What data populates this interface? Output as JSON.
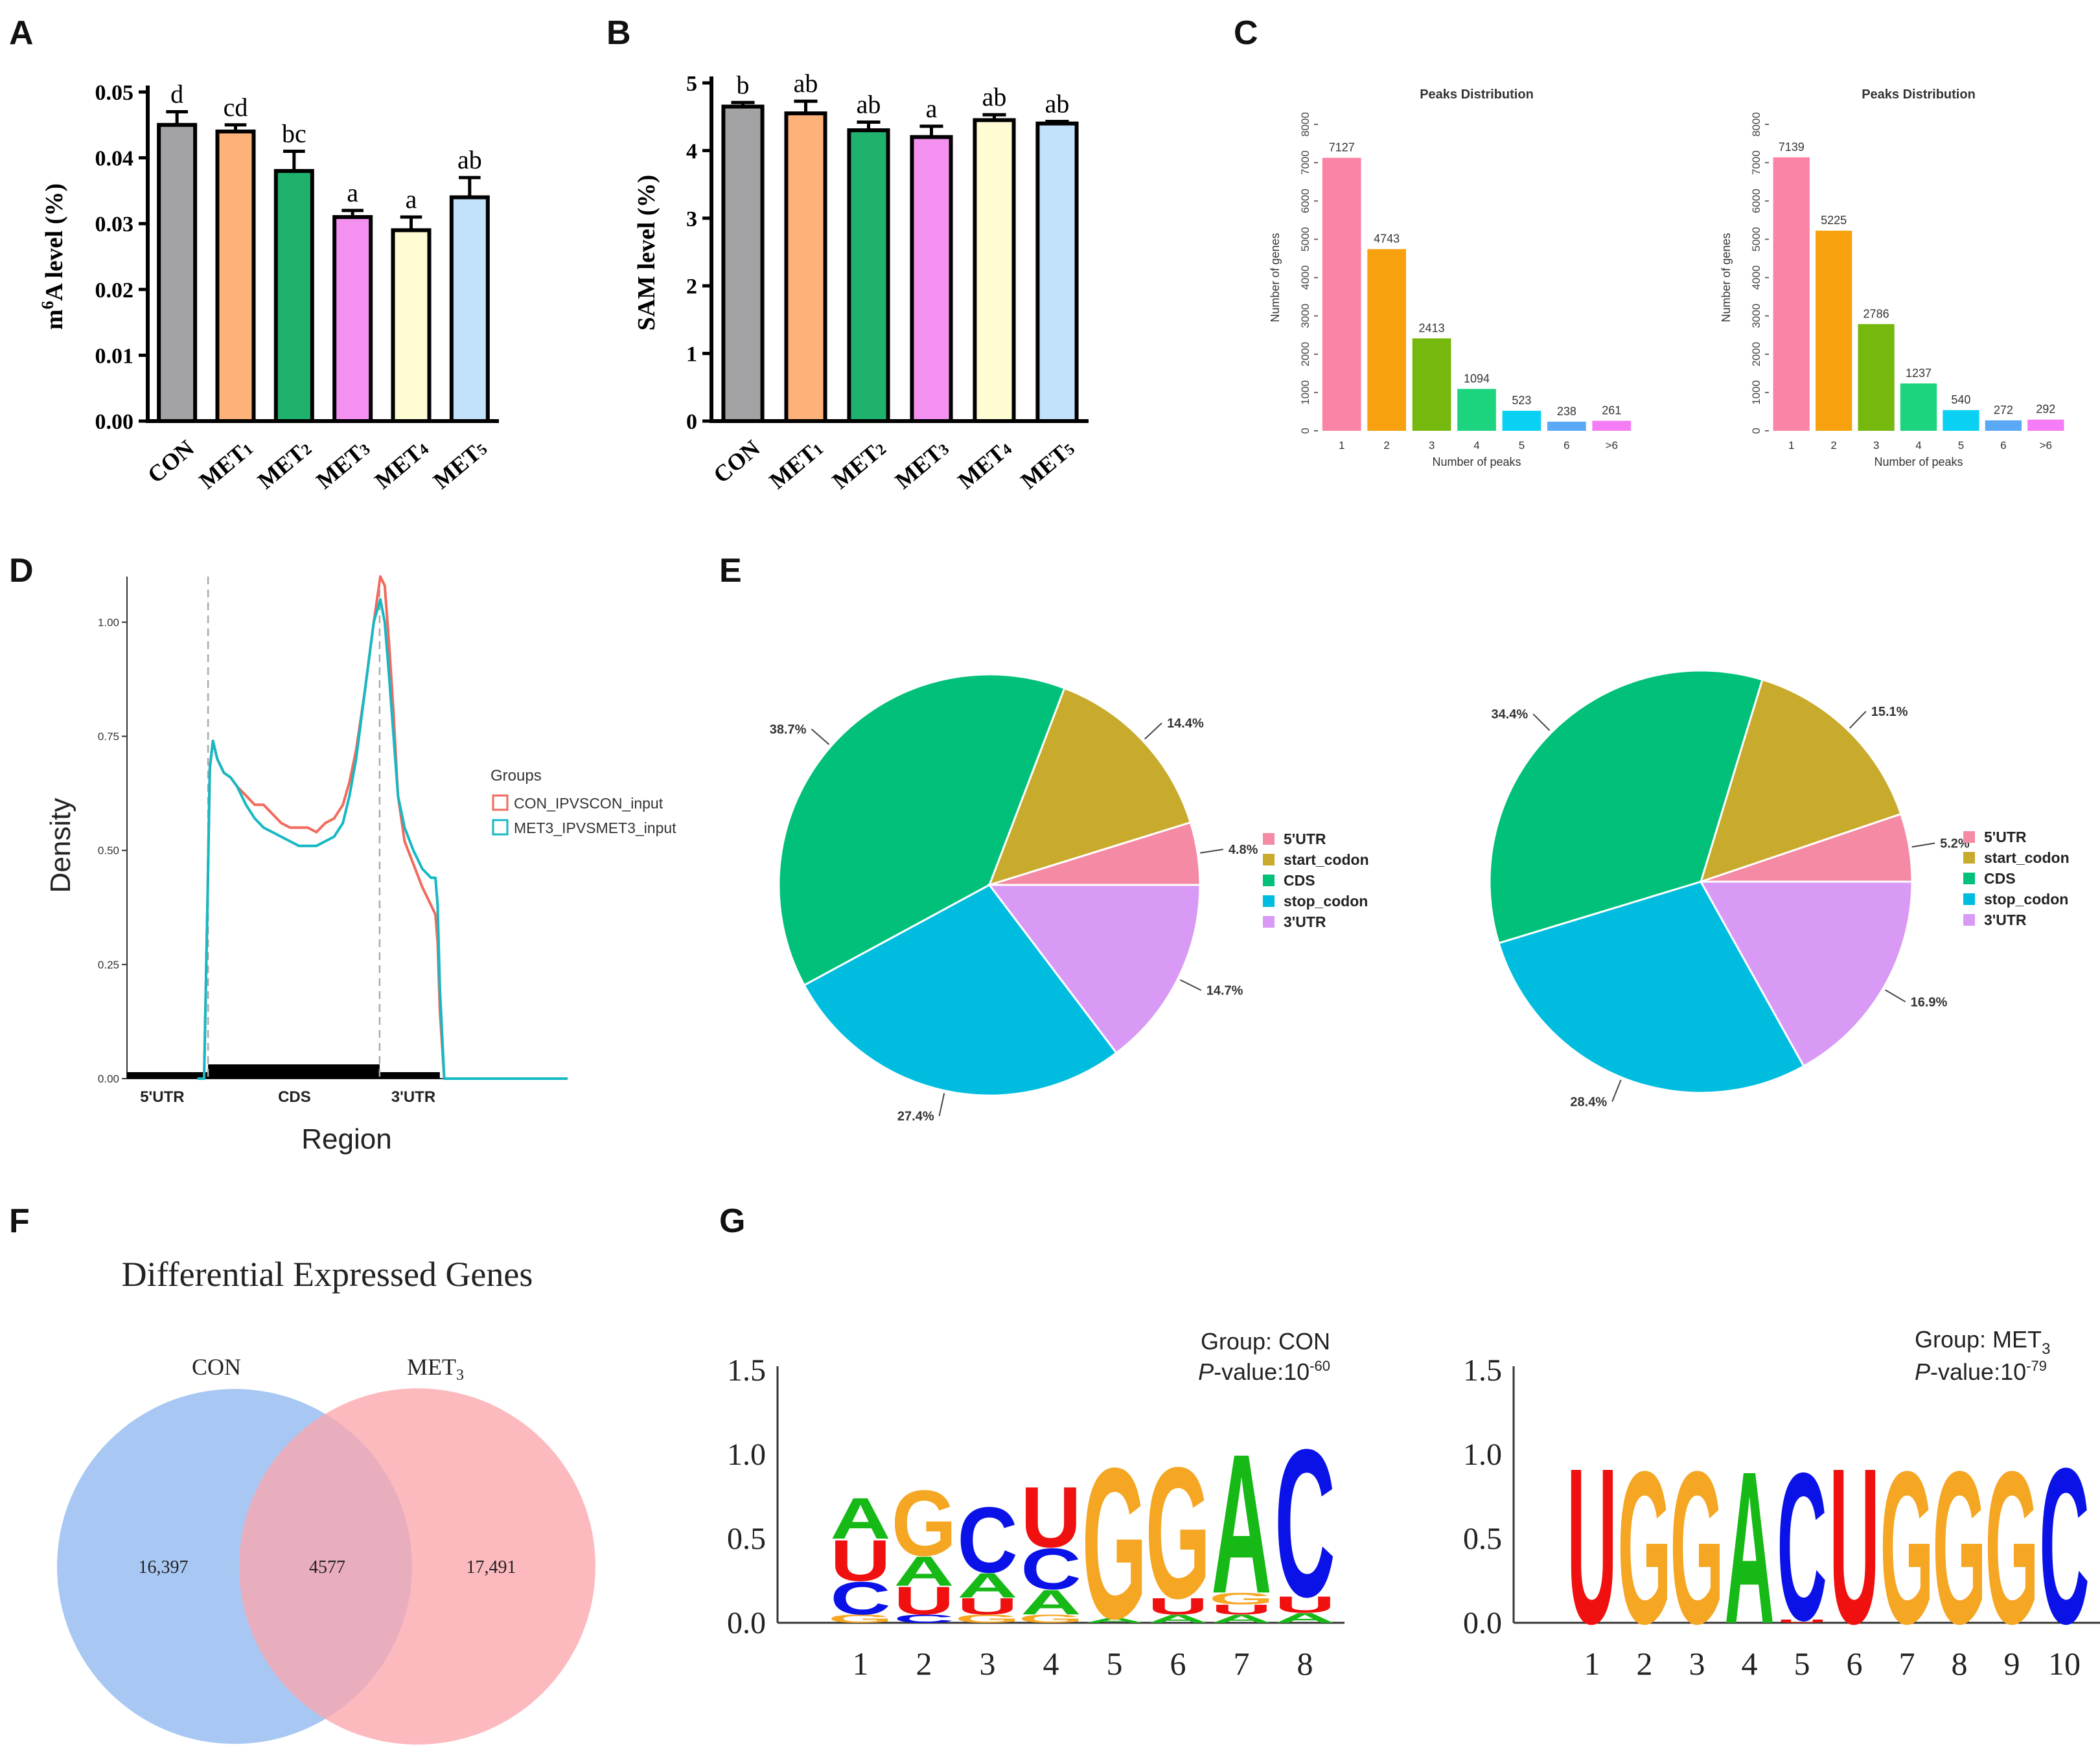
{
  "panels": {
    "a": "A",
    "b": "B",
    "c": "C",
    "d": "D",
    "e": "E",
    "f": "F",
    "g": "G"
  },
  "chart_data": [
    {
      "id": "A",
      "type": "bar",
      "ylabel_prefix": "m",
      "ylabel_sup": "6",
      "ylabel_rest": "A level (%)",
      "categories": [
        {
          "base": "CON",
          "sub": ""
        },
        {
          "base": "MET",
          "sub": "1"
        },
        {
          "base": "MET",
          "sub": "2"
        },
        {
          "base": "MET",
          "sub": "3"
        },
        {
          "base": "MET",
          "sub": "4"
        },
        {
          "base": "MET",
          "sub": "5"
        }
      ],
      "values": [
        0.045,
        0.044,
        0.038,
        0.031,
        0.029,
        0.034
      ],
      "errors": [
        0.002,
        0.001,
        0.003,
        0.001,
        0.002,
        0.003
      ],
      "letters": [
        "d",
        "cd",
        "bc",
        "a",
        "a",
        "ab"
      ],
      "colors": [
        "#a3a3a6",
        "#fdb27a",
        "#1fb26f",
        "#f490f0",
        "#fffbd2",
        "#c2e1fb"
      ],
      "ylim": [
        0,
        0.05
      ],
      "yticks": [
        "0.00",
        "0.01",
        "0.02",
        "0.03",
        "0.04",
        "0.05"
      ]
    },
    {
      "id": "B",
      "type": "bar",
      "ylabel": "SAM level (%)",
      "categories": [
        {
          "base": "CON",
          "sub": ""
        },
        {
          "base": "MET",
          "sub": "1"
        },
        {
          "base": "MET",
          "sub": "2"
        },
        {
          "base": "MET",
          "sub": "3"
        },
        {
          "base": "MET",
          "sub": "4"
        },
        {
          "base": "MET",
          "sub": "5"
        }
      ],
      "values": [
        4.65,
        4.55,
        4.3,
        4.2,
        4.45,
        4.4
      ],
      "errors": [
        0.06,
        0.18,
        0.12,
        0.16,
        0.08,
        0.03
      ],
      "letters": [
        "b",
        "ab",
        "ab",
        "a",
        "ab",
        "ab"
      ],
      "colors": [
        "#a3a3a6",
        "#fdb27a",
        "#1fb26f",
        "#f490f0",
        "#fffbd2",
        "#c2e1fb"
      ],
      "ylim": [
        0,
        5
      ],
      "yticks": [
        "0",
        "1",
        "2",
        "3",
        "4",
        "5"
      ]
    },
    {
      "id": "C1",
      "type": "bar",
      "title": "Peaks Distribution",
      "xlabel": "Number of peaks",
      "ylabel": "Number of genes",
      "categories": [
        "1",
        "2",
        "3",
        "4",
        "5",
        "6",
        ">6"
      ],
      "values": [
        7127,
        4743,
        2413,
        1094,
        523,
        238,
        261
      ],
      "colors": [
        "#fb83a5",
        "#f6a10d",
        "#77b80f",
        "#1cd47e",
        "#0ad0f4",
        "#5aa9f6",
        "#f47cf5"
      ],
      "ylim": [
        0,
        8000
      ],
      "yticks": [
        "0",
        "1000",
        "2000",
        "3000",
        "4000",
        "5000",
        "6000",
        "7000",
        "8000"
      ]
    },
    {
      "id": "C2",
      "type": "bar",
      "title": "Peaks Distribution",
      "xlabel": "Number of peaks",
      "ylabel": "Number of genes",
      "categories": [
        "1",
        "2",
        "3",
        "4",
        "5",
        "6",
        ">6"
      ],
      "values": [
        7139,
        5225,
        2786,
        1237,
        540,
        272,
        292
      ],
      "colors": [
        "#fb83a5",
        "#f6a10d",
        "#77b80f",
        "#1cd47e",
        "#0ad0f4",
        "#5aa9f6",
        "#f47cf5"
      ],
      "ylim": [
        0,
        8000
      ],
      "yticks": [
        "0",
        "1000",
        "2000",
        "3000",
        "4000",
        "5000",
        "6000",
        "7000",
        "8000"
      ]
    },
    {
      "id": "D",
      "type": "line",
      "xlabel": "Region",
      "ylabel": "Density",
      "ylim": [
        0,
        1.1
      ],
      "yticks": [
        "0.00",
        "0.25",
        "0.50",
        "0.75",
        "1.00"
      ],
      "regions": [
        "5'UTR",
        "CDS",
        "3'UTR"
      ],
      "legend_title": "Groups",
      "series": [
        {
          "name": "CON_IPVSCON_input",
          "color": "#f26a5e",
          "x": [
            0.16,
            0.175,
            0.183,
            0.188,
            0.195,
            0.205,
            0.22,
            0.235,
            0.25,
            0.27,
            0.29,
            0.31,
            0.33,
            0.35,
            0.37,
            0.39,
            0.41,
            0.43,
            0.45,
            0.47,
            0.49,
            0.505,
            0.52,
            0.54,
            0.56,
            0.575,
            0.585,
            0.595,
            0.605,
            0.615,
            0.63,
            0.65,
            0.67,
            0.69,
            0.7,
            0.705,
            0.71,
            0.72,
            0.73
          ],
          "y": [
            0,
            0,
            0.4,
            0.68,
            0.74,
            0.7,
            0.67,
            0.66,
            0.64,
            0.62,
            0.6,
            0.6,
            0.58,
            0.56,
            0.55,
            0.55,
            0.55,
            0.54,
            0.56,
            0.57,
            0.6,
            0.65,
            0.72,
            0.85,
            1.0,
            1.1,
            1.08,
            0.95,
            0.8,
            0.62,
            0.52,
            0.47,
            0.42,
            0.38,
            0.36,
            0.3,
            0.15,
            0,
            0
          ]
        },
        {
          "name": "MET3_IPVSMET3_input",
          "color": "#16b8c4",
          "x": [
            0.16,
            0.175,
            0.183,
            0.188,
            0.195,
            0.205,
            0.22,
            0.235,
            0.25,
            0.27,
            0.29,
            0.31,
            0.33,
            0.35,
            0.37,
            0.39,
            0.41,
            0.43,
            0.45,
            0.47,
            0.49,
            0.505,
            0.52,
            0.54,
            0.56,
            0.575,
            0.585,
            0.595,
            0.605,
            0.615,
            0.63,
            0.65,
            0.67,
            0.69,
            0.7,
            0.705,
            0.71,
            0.72,
            0.73
          ],
          "y": [
            0,
            0,
            0.4,
            0.68,
            0.74,
            0.7,
            0.67,
            0.66,
            0.64,
            0.6,
            0.57,
            0.55,
            0.54,
            0.53,
            0.52,
            0.51,
            0.51,
            0.51,
            0.52,
            0.53,
            0.56,
            0.62,
            0.7,
            0.85,
            1.0,
            1.05,
            1.0,
            0.88,
            0.75,
            0.62,
            0.55,
            0.5,
            0.46,
            0.44,
            0.44,
            0.38,
            0.2,
            0,
            0
          ]
        }
      ]
    },
    {
      "id": "E1",
      "type": "pie",
      "labels": [
        "5'UTR",
        "start_codon",
        "CDS",
        "stop_codon",
        "3'UTR"
      ],
      "values": [
        4.8,
        14.4,
        38.7,
        27.4,
        14.7
      ],
      "value_labels": [
        "4.8%",
        "14.4%",
        "38.7%",
        "27.4%",
        "14.7%"
      ],
      "colors": [
        "#f58aa5",
        "#c8aa2c",
        "#00c07a",
        "#00bde0",
        "#d99af5"
      ]
    },
    {
      "id": "E2",
      "type": "pie",
      "labels": [
        "5'UTR",
        "start_codon",
        "CDS",
        "stop_codon",
        "3'UTR"
      ],
      "values": [
        5.2,
        15.1,
        34.4,
        28.4,
        16.9
      ],
      "value_labels": [
        "5.2%",
        "15.1%",
        "34.4%",
        "28.4%",
        "16.9%"
      ],
      "colors": [
        "#f58aa5",
        "#c8aa2c",
        "#00c07a",
        "#00bde0",
        "#d99af5"
      ]
    },
    {
      "id": "F",
      "type": "venn",
      "title": "Differential Expressed Genes",
      "sets": [
        {
          "name": "CON",
          "sub": ""
        },
        {
          "name": "MET",
          "sub": "3"
        }
      ],
      "counts": {
        "left_only": "16,397",
        "both": "4577",
        "right_only": "17,491"
      },
      "colors": [
        "#8fb8f0",
        "#fba6ad"
      ]
    },
    {
      "id": "G1",
      "type": "sequence_logo",
      "group_label": "Group: CON",
      "p_italic": "P",
      "p_text": "-value:10",
      "p_exp": "-60",
      "ylim": [
        0,
        1.5
      ],
      "yticks": [
        "0.0",
        "0.5",
        "1.0",
        "1.5"
      ],
      "positions": [
        "1",
        "2",
        "3",
        "4",
        "5",
        "6",
        "7",
        "8"
      ],
      "columns": [
        [
          [
            "G",
            0.05
          ],
          [
            "C",
            0.2
          ],
          [
            "U",
            0.25
          ],
          [
            "A",
            0.25
          ]
        ],
        [
          [
            "C",
            0.05
          ],
          [
            "U",
            0.17
          ],
          [
            "A",
            0.18
          ],
          [
            "G",
            0.4
          ]
        ],
        [
          [
            "G",
            0.05
          ],
          [
            "U",
            0.1
          ],
          [
            "A",
            0.15
          ],
          [
            "C",
            0.4
          ]
        ],
        [
          [
            "G",
            0.05
          ],
          [
            "A",
            0.15
          ],
          [
            "C",
            0.25
          ],
          [
            "U",
            0.37
          ]
        ],
        [
          [
            "A",
            0.03
          ],
          [
            "G",
            0.92
          ]
        ],
        [
          [
            "A",
            0.05
          ],
          [
            "U",
            0.1
          ],
          [
            "G",
            0.8
          ]
        ],
        [
          [
            "A",
            0.05
          ],
          [
            "U",
            0.06
          ],
          [
            "G",
            0.07
          ],
          [
            "A",
            0.85
          ]
        ],
        [
          [
            "A",
            0.06
          ],
          [
            "U",
            0.1
          ],
          [
            "C",
            0.9
          ]
        ]
      ]
    },
    {
      "id": "G2",
      "type": "sequence_logo",
      "group_label_base": "Group: MET",
      "group_label_sub": "3",
      "p_italic": "P",
      "p_text": "-value:10",
      "p_exp": "-79",
      "ylim": [
        0,
        1.5
      ],
      "yticks": [
        "0.0",
        "0.5",
        "1.0",
        "1.5"
      ],
      "positions": [
        "1",
        "2",
        "3",
        "4",
        "5",
        "6",
        "7",
        "8",
        "9",
        "10"
      ],
      "columns": [
        [
          [
            "U",
            0.95
          ]
        ],
        [
          [
            "G",
            0.93
          ]
        ],
        [
          [
            "G",
            0.93
          ]
        ],
        [
          [
            "A",
            0.93
          ]
        ],
        [
          [
            "U",
            0.02
          ],
          [
            "C",
            0.9
          ]
        ],
        [
          [
            "U",
            0.95
          ]
        ],
        [
          [
            "G",
            0.93
          ]
        ],
        [
          [
            "G",
            0.93
          ]
        ],
        [
          [
            "G",
            0.93
          ]
        ],
        [
          [
            "C",
            0.95
          ]
        ]
      ]
    }
  ]
}
